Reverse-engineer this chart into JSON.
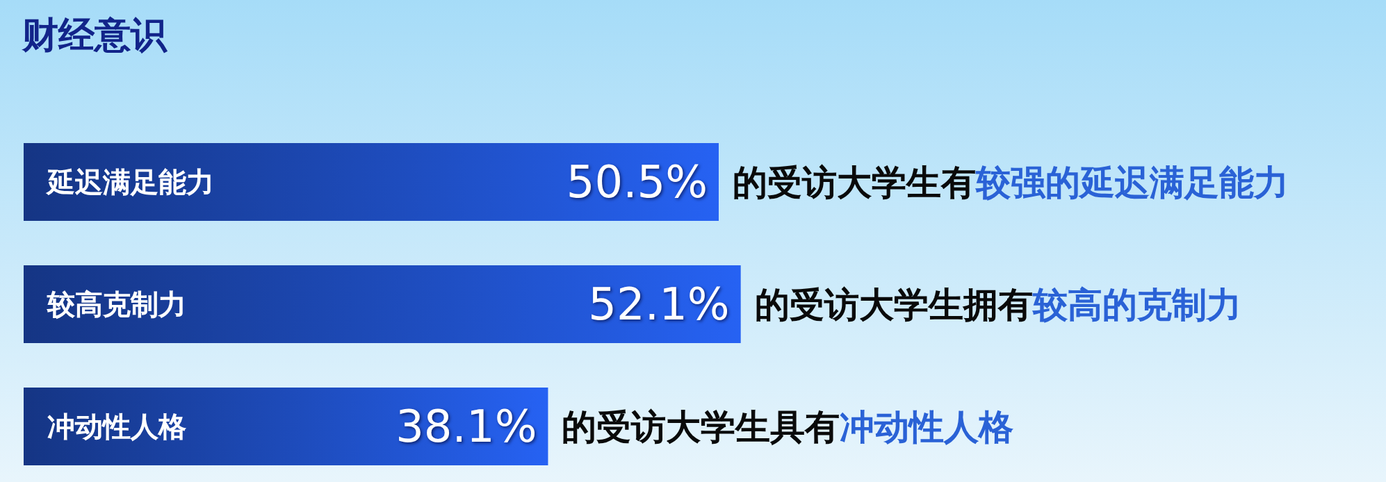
{
  "chart_data": {
    "type": "bar",
    "orientation": "horizontal",
    "title": "财经意识",
    "categories": [
      "延迟满足能力",
      "较高克制力",
      "冲动性人格"
    ],
    "values": [
      50.5,
      52.1,
      38.1
    ],
    "value_labels": [
      "50.5%",
      "52.1%",
      "38.1%"
    ],
    "color": "#1f4fc4",
    "annotations": [
      "的受访大学生有",
      "较强的延迟满足能力",
      "的受访大学生拥有",
      "较高的克制力",
      "的受访大学生具有",
      "冲动性人格"
    ]
  }
}
